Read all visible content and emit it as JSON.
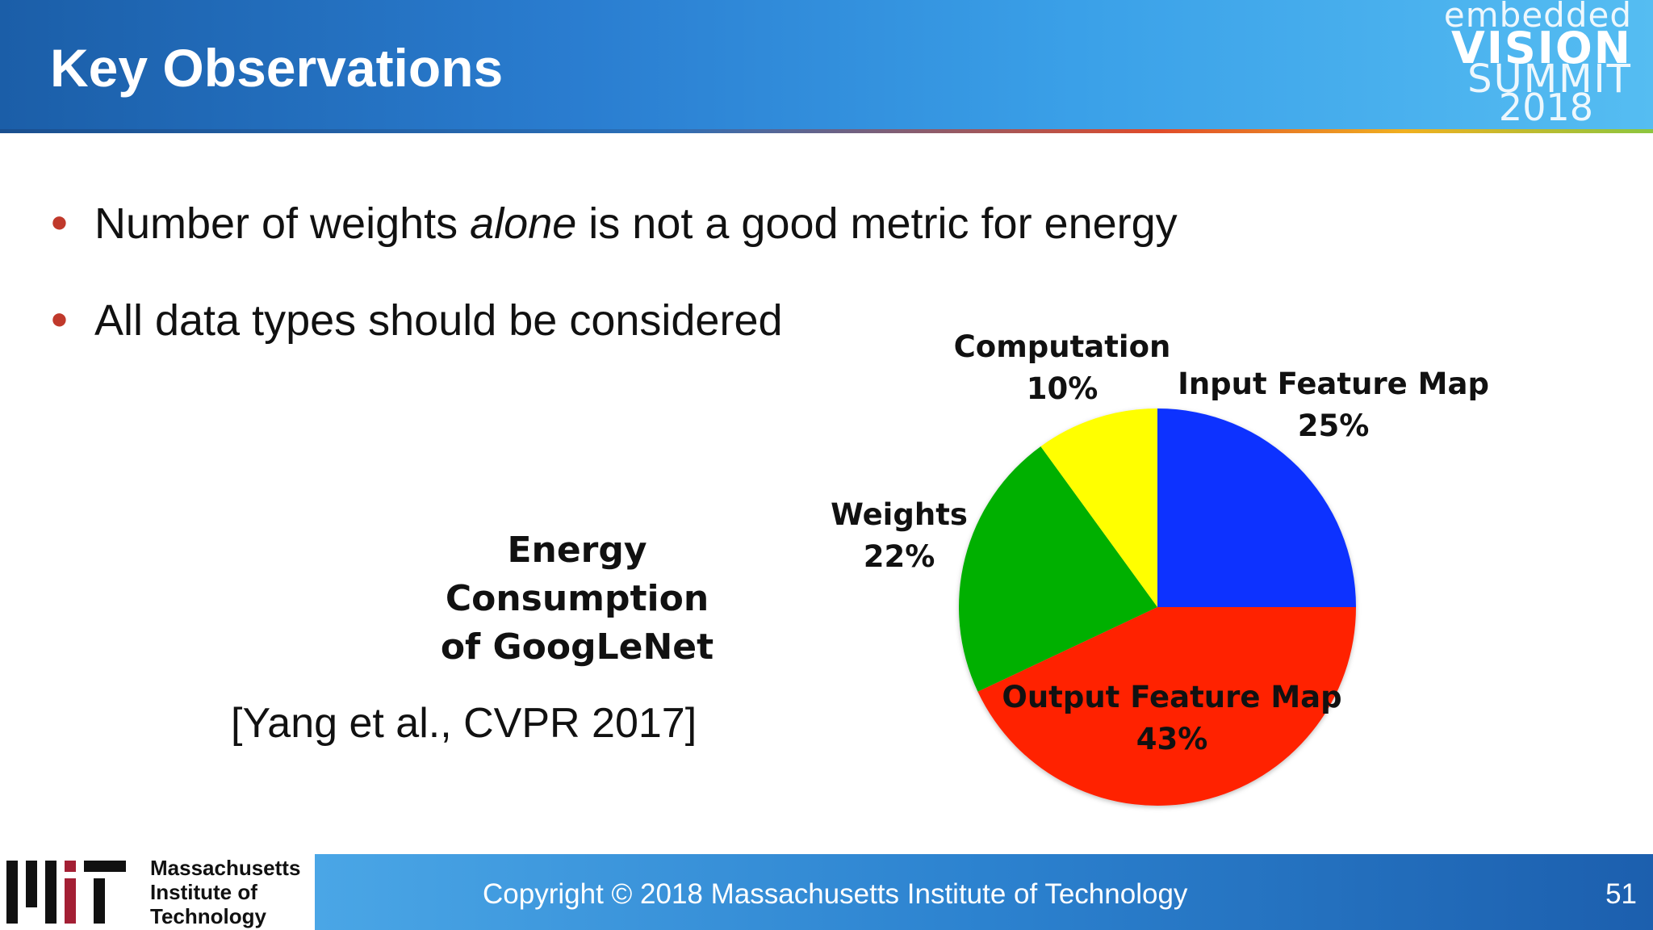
{
  "header": {
    "title": "Key Observations",
    "brand": {
      "line1": "embedded",
      "line2": "VISION",
      "line3": "SUMMIT",
      "line4": "2018"
    }
  },
  "bullets": [
    {
      "pre": "Number of weights ",
      "em": "alone",
      "post": " is not a good metric for energy"
    },
    {
      "text": "All data types should be considered"
    }
  ],
  "energy_title": {
    "line1": "Energy Consumption",
    "line2": "of GoogLeNet"
  },
  "citation": "[Yang et al., CVPR 2017]",
  "chart_data": {
    "type": "pie",
    "title": "",
    "slices": [
      {
        "label": "Input Feature Map",
        "value": 25,
        "display": "25%",
        "color": "#1133ff"
      },
      {
        "label": "Output Feature Map",
        "value": 43,
        "display": "43%",
        "color": "#ff2200"
      },
      {
        "label": "Weights",
        "value": 22,
        "display": "22%",
        "color": "#00b000"
      },
      {
        "label": "Computation",
        "value": 10,
        "display": "10%",
        "color": "#ffff00"
      }
    ]
  },
  "footer": {
    "copyright": "Copyright © 2018 Massachusetts Institute of Technology",
    "page_number": "51",
    "institution": {
      "line1": "Massachusetts",
      "line2": "Institute of",
      "line3": "Technology"
    }
  }
}
